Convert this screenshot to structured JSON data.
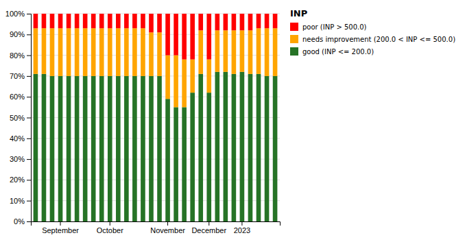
{
  "chart_data": {
    "type": "bar",
    "stacked": true,
    "title": "INP",
    "categories": [
      null,
      null,
      null,
      "September",
      null,
      null,
      null,
      null,
      null,
      "October",
      null,
      null,
      null,
      null,
      null,
      null,
      "November",
      null,
      null,
      null,
      null,
      "December",
      null,
      null,
      null,
      "2023",
      null,
      null,
      null,
      null
    ],
    "series": [
      {
        "name": "good (INP <= 200.0)",
        "color": "#267326",
        "values": [
          71,
          71,
          70,
          70,
          70,
          70,
          70,
          70,
          70,
          70,
          70,
          70,
          70,
          70,
          70,
          70,
          59,
          55,
          55,
          62,
          71,
          62,
          72,
          72,
          71,
          72,
          71,
          71,
          70,
          70
        ]
      },
      {
        "name": "needs improvement (200.0 < INP <= 500.0)",
        "color": "#ffa500",
        "values": [
          22,
          22,
          23,
          23,
          23,
          23,
          23,
          23,
          23,
          23,
          23,
          23,
          23,
          23,
          21,
          21,
          21,
          25,
          23,
          16,
          21,
          16,
          20,
          20,
          21,
          20,
          21,
          22,
          23,
          23
        ]
      },
      {
        "name": "poor (INP > 500.0)",
        "color": "#ff0000",
        "values": [
          7,
          7,
          7,
          7,
          7,
          7,
          7,
          7,
          7,
          7,
          7,
          7,
          7,
          7,
          9,
          9,
          20,
          20,
          22,
          22,
          8,
          22,
          8,
          8,
          8,
          8,
          8,
          7,
          7,
          7
        ]
      }
    ],
    "ylim": [
      0,
      100
    ],
    "yticks": [
      {
        "value": 0,
        "label": "0%"
      },
      {
        "value": 10,
        "label": "10%"
      },
      {
        "value": 20,
        "label": "20%"
      },
      {
        "value": 30,
        "label": "30%"
      },
      {
        "value": 40,
        "label": "40%"
      },
      {
        "value": 50,
        "label": "50%"
      },
      {
        "value": 60,
        "label": "60%"
      },
      {
        "value": 70,
        "label": "70%"
      },
      {
        "value": 80,
        "label": "80%"
      },
      {
        "value": 90,
        "label": "90%"
      },
      {
        "value": 100,
        "label": "100%"
      }
    ],
    "grid": true,
    "legend": "right"
  }
}
